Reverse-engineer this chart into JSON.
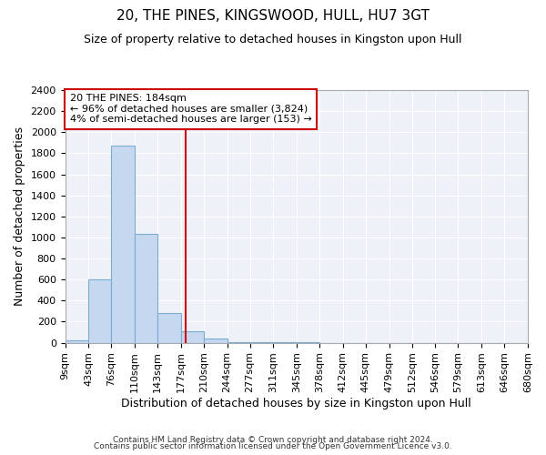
{
  "title": "20, THE PINES, KINGSWOOD, HULL, HU7 3GT",
  "subtitle": "Size of property relative to detached houses in Kingston upon Hull",
  "xlabel": "Distribution of detached houses by size in Kingston upon Hull",
  "ylabel": "Number of detached properties",
  "bin_edges": [
    9,
    43,
    76,
    110,
    143,
    177,
    210,
    244,
    277,
    311,
    345,
    378,
    412,
    445,
    479,
    512,
    546,
    579,
    613,
    646,
    680
  ],
  "bar_heights": [
    20,
    600,
    1870,
    1035,
    285,
    110,
    40,
    8,
    3,
    1,
    1,
    0,
    0,
    0,
    0,
    0,
    0,
    0,
    0,
    0
  ],
  "bar_color": "#c5d8ef",
  "bar_edge_color": "#7aadd4",
  "red_line_x": 184,
  "red_line_color": "#cc0000",
  "annotation_line1": "20 THE PINES: 184sqm",
  "annotation_line2": "← 96% of detached houses are smaller (3,824)",
  "annotation_line3": "4% of semi-detached houses are larger (153) →",
  "annotation_box_color": "#ffffff",
  "annotation_box_edge_color": "#cc0000",
  "ylim": [
    0,
    2400
  ],
  "yticks": [
    0,
    200,
    400,
    600,
    800,
    1000,
    1200,
    1400,
    1600,
    1800,
    2000,
    2200,
    2400
  ],
  "footer_line1": "Contains HM Land Registry data © Crown copyright and database right 2024.",
  "footer_line2": "Contains public sector information licensed under the Open Government Licence v3.0.",
  "plot_bg_color": "#eef2f8",
  "fig_bg_color": "#ffffff",
  "grid_color": "#ffffff",
  "title_fontsize": 11,
  "subtitle_fontsize": 9,
  "axis_label_fontsize": 9,
  "tick_fontsize": 8,
  "annotation_fontsize": 8
}
